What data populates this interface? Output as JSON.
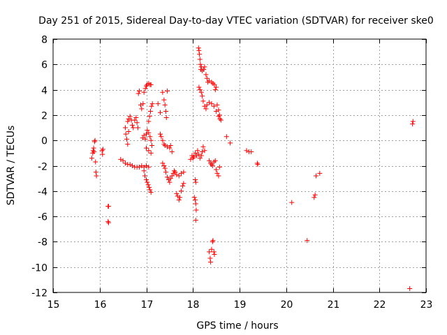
{
  "chart_data": {
    "type": "scatter",
    "title": "Day 251 of 2015, Sidereal Day-to-day VTEC variation (SDTVAR) for receiver ske0",
    "xlabel": "GPS time / hours",
    "ylabel": "SDTVAR / TECUs",
    "xlim": [
      15,
      23
    ],
    "ylim": [
      -12,
      8
    ],
    "xticks": [
      15,
      16,
      17,
      18,
      19,
      20,
      21,
      22,
      23
    ],
    "yticks": [
      -12,
      -10,
      -8,
      -6,
      -4,
      -2,
      0,
      2,
      4,
      6,
      8
    ],
    "grid": true,
    "marker": "plus",
    "marker_color": "#ff0000",
    "series": [
      {
        "name": "ske0",
        "points": [
          [
            15.83,
            -1.4
          ],
          [
            15.85,
            -1.0
          ],
          [
            15.86,
            -0.8
          ],
          [
            15.87,
            -0.6
          ],
          [
            15.88,
            -0.9
          ],
          [
            15.89,
            -0.1
          ],
          [
            15.9,
            0.0
          ],
          [
            15.91,
            -1.7
          ],
          [
            15.92,
            -2.5
          ],
          [
            15.93,
            -2.8
          ],
          [
            16.05,
            -0.8
          ],
          [
            16.06,
            -1.1
          ],
          [
            16.07,
            -0.7
          ],
          [
            16.18,
            -5.2
          ],
          [
            16.19,
            -5.2
          ],
          [
            16.18,
            -6.4
          ],
          [
            16.19,
            -6.5
          ],
          [
            16.45,
            -1.5
          ],
          [
            16.5,
            -1.6
          ],
          [
            16.55,
            -1.8
          ],
          [
            16.6,
            -1.9
          ],
          [
            16.65,
            -1.9
          ],
          [
            16.7,
            -2.0
          ],
          [
            16.75,
            -2.1
          ],
          [
            16.8,
            -2.1
          ],
          [
            16.85,
            -2.1
          ],
          [
            16.9,
            -2.0
          ],
          [
            16.95,
            -2.1
          ],
          [
            17.0,
            -2.0
          ],
          [
            17.05,
            -2.1
          ],
          [
            16.55,
            1.0
          ],
          [
            16.56,
            0.5
          ],
          [
            16.58,
            0.1
          ],
          [
            16.6,
            -0.3
          ],
          [
            16.62,
            0.7
          ],
          [
            16.6,
            1.5
          ],
          [
            16.62,
            1.7
          ],
          [
            16.65,
            1.9
          ],
          [
            16.68,
            1.6
          ],
          [
            16.7,
            1.2
          ],
          [
            16.72,
            1.0
          ],
          [
            16.75,
            1.6
          ],
          [
            16.78,
            1.8
          ],
          [
            16.8,
            1.4
          ],
          [
            16.82,
            1.0
          ],
          [
            16.83,
            3.7
          ],
          [
            16.85,
            3.9
          ],
          [
            16.88,
            2.8
          ],
          [
            16.9,
            2.5
          ],
          [
            16.93,
            2.9
          ],
          [
            16.95,
            3.8
          ],
          [
            16.98,
            4.1
          ],
          [
            17.0,
            4.3
          ],
          [
            17.02,
            4.4
          ],
          [
            17.05,
            4.5
          ],
          [
            17.08,
            4.4
          ],
          [
            17.1,
            4.4
          ],
          [
            16.92,
            0.2
          ],
          [
            16.95,
            0.4
          ],
          [
            16.98,
            0.1
          ],
          [
            17.0,
            0.5
          ],
          [
            17.02,
            0.8
          ],
          [
            17.05,
            0.6
          ],
          [
            17.08,
            0.3
          ],
          [
            17.1,
            0.0
          ],
          [
            17.12,
            -0.4
          ],
          [
            16.95,
            -2.4
          ],
          [
            16.97,
            -2.8
          ],
          [
            17.0,
            -3.1
          ],
          [
            17.02,
            -3.3
          ],
          [
            17.04,
            -3.5
          ],
          [
            17.06,
            -3.7
          ],
          [
            17.08,
            -3.9
          ],
          [
            17.1,
            -4.1
          ],
          [
            17.0,
            -0.6
          ],
          [
            17.05,
            -0.8
          ],
          [
            17.1,
            -1.0
          ],
          [
            17.05,
            1.5
          ],
          [
            17.07,
            1.9
          ],
          [
            17.09,
            2.3
          ],
          [
            17.11,
            2.7
          ],
          [
            17.13,
            2.9
          ],
          [
            17.25,
            2.9
          ],
          [
            17.3,
            2.2
          ],
          [
            17.3,
            0.5
          ],
          [
            17.32,
            0.3
          ],
          [
            17.35,
            0.0
          ],
          [
            17.38,
            -0.3
          ],
          [
            17.4,
            -0.4
          ],
          [
            17.45,
            -0.5
          ],
          [
            17.5,
            -0.6
          ],
          [
            17.52,
            -0.4
          ],
          [
            17.55,
            -0.9
          ],
          [
            17.35,
            3.8
          ],
          [
            17.38,
            3.2
          ],
          [
            17.4,
            2.8
          ],
          [
            17.42,
            2.3
          ],
          [
            17.43,
            1.8
          ],
          [
            17.45,
            3.9
          ],
          [
            17.35,
            -1.8
          ],
          [
            17.38,
            -2.0
          ],
          [
            17.4,
            -2.2
          ],
          [
            17.42,
            -2.5
          ],
          [
            17.45,
            -2.9
          ],
          [
            17.48,
            -3.1
          ],
          [
            17.5,
            -3.3
          ],
          [
            17.52,
            -3.0
          ],
          [
            17.55,
            -2.8
          ],
          [
            17.58,
            -2.6
          ],
          [
            17.6,
            -2.4
          ],
          [
            17.62,
            -2.5
          ],
          [
            17.65,
            -2.7
          ],
          [
            17.7,
            -2.8
          ],
          [
            17.75,
            -2.6
          ],
          [
            17.8,
            -2.5
          ],
          [
            17.65,
            -4.2
          ],
          [
            17.67,
            -4.4
          ],
          [
            17.7,
            -4.7
          ],
          [
            17.72,
            -4.5
          ],
          [
            17.75,
            -4.0
          ],
          [
            17.78,
            -3.6
          ],
          [
            17.8,
            -3.4
          ],
          [
            17.95,
            -1.5
          ],
          [
            17.98,
            -1.2
          ],
          [
            18.0,
            -1.4
          ],
          [
            18.02,
            -1.3
          ],
          [
            18.05,
            -1.0
          ],
          [
            18.08,
            -1.2
          ],
          [
            18.1,
            -0.8
          ],
          [
            18.12,
            -1.1
          ],
          [
            18.15,
            -1.4
          ],
          [
            18.18,
            -1.2
          ],
          [
            18.2,
            -0.9
          ],
          [
            18.22,
            -0.5
          ],
          [
            18.25,
            -0.8
          ],
          [
            18.05,
            -3.1
          ],
          [
            18.06,
            -3.3
          ],
          [
            18.03,
            -4.5
          ],
          [
            18.05,
            -4.7
          ],
          [
            18.06,
            -5.0
          ],
          [
            18.07,
            -5.5
          ],
          [
            18.06,
            -6.3
          ],
          [
            18.12,
            7.3
          ],
          [
            18.13,
            7.1
          ],
          [
            18.14,
            6.8
          ],
          [
            18.15,
            6.4
          ],
          [
            18.16,
            6.0
          ],
          [
            18.17,
            5.6
          ],
          [
            18.18,
            5.8
          ],
          [
            18.2,
            5.5
          ],
          [
            18.23,
            5.6
          ],
          [
            18.25,
            5.8
          ],
          [
            18.13,
            4.2
          ],
          [
            18.15,
            4.0
          ],
          [
            18.18,
            3.8
          ],
          [
            18.2,
            3.5
          ],
          [
            18.22,
            3.1
          ],
          [
            18.25,
            2.7
          ],
          [
            18.28,
            2.5
          ],
          [
            18.3,
            2.8
          ],
          [
            18.35,
            3.0
          ],
          [
            18.4,
            2.9
          ],
          [
            18.45,
            2.7
          ],
          [
            18.5,
            2.3
          ],
          [
            18.55,
            1.9
          ],
          [
            18.28,
            5.2
          ],
          [
            18.3,
            4.9
          ],
          [
            18.32,
            4.6
          ],
          [
            18.35,
            4.7
          ],
          [
            18.4,
            4.6
          ],
          [
            18.43,
            4.5
          ],
          [
            18.46,
            4.4
          ],
          [
            18.48,
            4.0
          ],
          [
            18.5,
            4.2
          ],
          [
            18.52,
            2.8
          ],
          [
            18.55,
            2.4
          ],
          [
            18.57,
            2.0
          ],
          [
            18.58,
            1.7
          ],
          [
            18.6,
            1.6
          ],
          [
            18.35,
            -1.6
          ],
          [
            18.38,
            -1.8
          ],
          [
            18.4,
            -1.9
          ],
          [
            18.42,
            -2.0
          ],
          [
            18.45,
            -1.7
          ],
          [
            18.48,
            -1.6
          ],
          [
            18.5,
            -2.3
          ],
          [
            18.52,
            -2.6
          ],
          [
            18.55,
            -2.8
          ],
          [
            18.57,
            -2.1
          ],
          [
            18.35,
            -8.8
          ],
          [
            18.37,
            -9.3
          ],
          [
            18.38,
            -9.6
          ],
          [
            18.4,
            -8.6
          ],
          [
            18.42,
            -8.0
          ],
          [
            18.43,
            -7.9
          ],
          [
            18.45,
            -8.8
          ],
          [
            18.46,
            -9.0
          ],
          [
            18.72,
            0.3
          ],
          [
            18.8,
            -0.2
          ],
          [
            19.15,
            -0.8
          ],
          [
            19.2,
            -0.9
          ],
          [
            19.25,
            -0.9
          ],
          [
            19.38,
            -1.8
          ],
          [
            19.39,
            -1.9
          ],
          [
            20.12,
            -4.9
          ],
          [
            20.45,
            -7.9
          ],
          [
            20.6,
            -4.5
          ],
          [
            20.62,
            -4.3
          ],
          [
            20.64,
            -2.8
          ],
          [
            20.72,
            -2.6
          ],
          [
            22.65,
            -11.7
          ],
          [
            22.71,
            1.3
          ],
          [
            22.72,
            1.5
          ]
        ]
      }
    ]
  }
}
